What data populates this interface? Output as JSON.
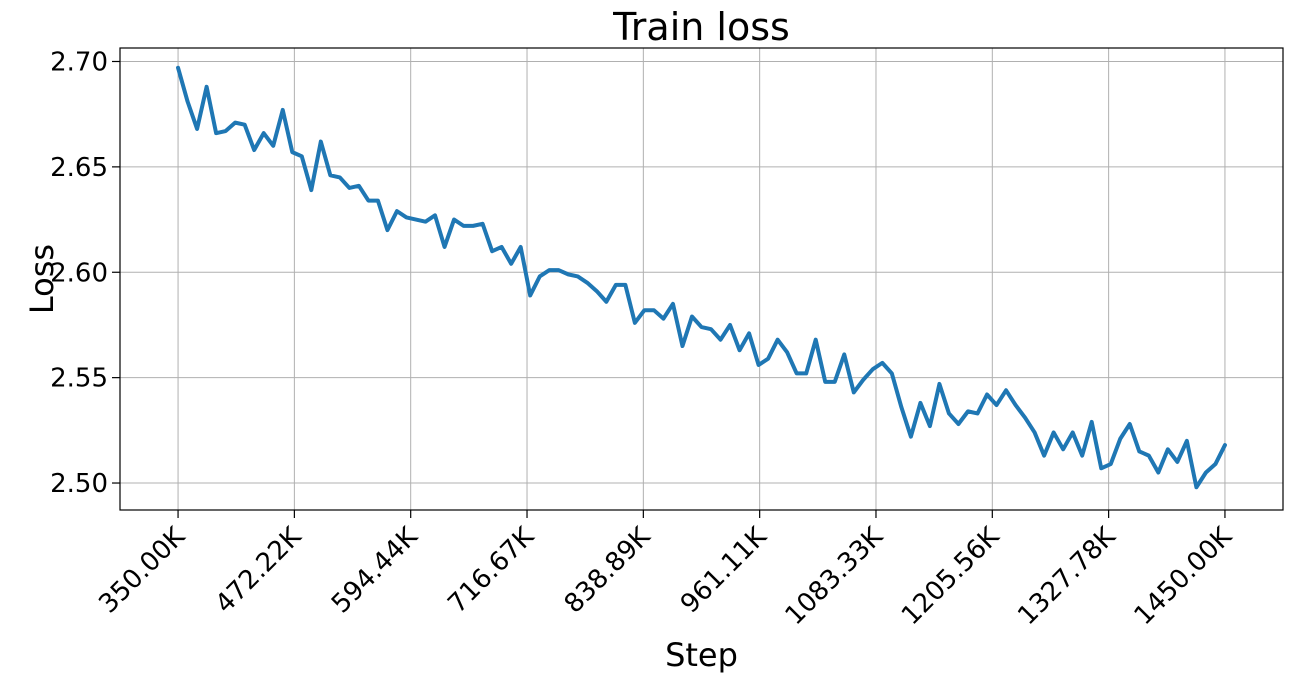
{
  "chart_data": {
    "type": "line",
    "title": "Train loss",
    "xlabel": "Step",
    "ylabel": "Loss",
    "xlim": [
      289000,
      1511000
    ],
    "ylim": [
      2.4872,
      2.7064
    ],
    "grid": true,
    "x_ticks": [
      350000,
      472220,
      594440,
      716670,
      838890,
      961110,
      1083330,
      1205560,
      1327780,
      1450000
    ],
    "x_tick_labels": [
      "350.00K",
      "472.22K",
      "594.44K",
      "716.67K",
      "838.89K",
      "961.11K",
      "1083.33K",
      "1205.56K",
      "1327.78K",
      "1450.00K"
    ],
    "y_ticks": [
      2.5,
      2.55,
      2.6,
      2.65,
      2.7
    ],
    "y_tick_labels": [
      "2.50",
      "2.55",
      "2.60",
      "2.65",
      "2.70"
    ],
    "series": [
      {
        "color": "#1f77b4",
        "x": [
          350000,
          360000,
          370000,
          380000,
          390000,
          400000,
          410000,
          420000,
          430000,
          440000,
          450000,
          460000,
          470000,
          480000,
          490000,
          500000,
          510000,
          520000,
          530000,
          540000,
          550000,
          560000,
          570000,
          580000,
          590000,
          600000,
          610000,
          620000,
          630000,
          640000,
          650000,
          660000,
          670000,
          680000,
          690000,
          700000,
          710000,
          720000,
          730000,
          740000,
          750000,
          760000,
          770000,
          780000,
          790000,
          800000,
          810000,
          820000,
          830000,
          840000,
          850000,
          860000,
          870000,
          880000,
          890000,
          900000,
          910000,
          920000,
          930000,
          940000,
          950000,
          960000,
          970000,
          980000,
          990000,
          1000000,
          1010000,
          1020000,
          1030000,
          1040000,
          1050000,
          1060000,
          1070000,
          1080000,
          1090000,
          1100000,
          1110000,
          1120000,
          1130000,
          1140000,
          1150000,
          1160000,
          1170000,
          1180000,
          1190000,
          1200000,
          1210000,
          1220000,
          1230000,
          1240000,
          1250000,
          1260000,
          1270000,
          1280000,
          1290000,
          1300000,
          1310000,
          1320000,
          1330000,
          1340000,
          1350000,
          1360000,
          1370000,
          1380000,
          1390000,
          1400000,
          1410000,
          1420000,
          1430000,
          1440000,
          1450000
        ],
        "values": [
          2.697,
          2.681,
          2.668,
          2.688,
          2.666,
          2.667,
          2.671,
          2.67,
          2.658,
          2.666,
          2.66,
          2.677,
          2.657,
          2.655,
          2.639,
          2.662,
          2.646,
          2.645,
          2.64,
          2.641,
          2.634,
          2.634,
          2.62,
          2.629,
          2.626,
          2.625,
          2.624,
          2.627,
          2.612,
          2.625,
          2.622,
          2.622,
          2.623,
          2.61,
          2.612,
          2.604,
          2.612,
          2.589,
          2.598,
          2.601,
          2.601,
          2.599,
          2.598,
          2.595,
          2.591,
          2.586,
          2.594,
          2.594,
          2.576,
          2.582,
          2.582,
          2.578,
          2.585,
          2.565,
          2.579,
          2.574,
          2.573,
          2.568,
          2.575,
          2.563,
          2.571,
          2.556,
          2.559,
          2.568,
          2.562,
          2.552,
          2.552,
          2.568,
          2.548,
          2.548,
          2.561,
          2.543,
          2.549,
          2.554,
          2.557,
          2.552,
          2.536,
          2.522,
          2.538,
          2.527,
          2.547,
          2.533,
          2.528,
          2.534,
          2.533,
          2.542,
          2.537,
          2.544,
          2.537,
          2.531,
          2.524,
          2.513,
          2.524,
          2.516,
          2.524,
          2.513,
          2.529,
          2.507,
          2.509,
          2.521,
          2.528,
          2.515,
          2.513,
          2.505,
          2.516,
          2.51,
          2.52,
          2.498,
          2.505,
          2.509,
          2.518
        ]
      }
    ]
  }
}
